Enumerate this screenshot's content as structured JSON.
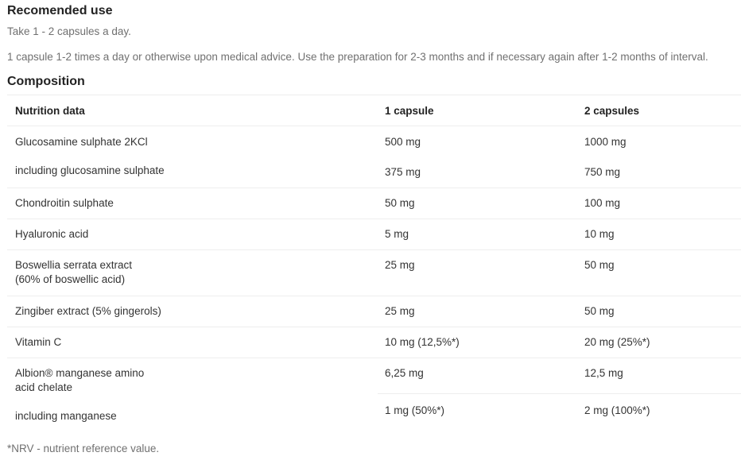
{
  "recommended_use": {
    "title": "Recomended use",
    "short": "Take 1 - 2 capsules a day.",
    "long": "1 capsule 1-2 times a day or otherwise upon medical advice. Use the preparation for 2-3 months and if necessary again after 1-2 months of interval."
  },
  "composition": {
    "title": "Composition",
    "headers": [
      "Nutrition data",
      "1 capsule",
      "2 capsules"
    ],
    "rows": [
      {
        "name": "Glucosamine sulphate 2KCl",
        "one": "500 mg",
        "two": "1000 mg"
      },
      {
        "name": "including glucosamine sulphate",
        "one": "375 mg",
        "two": "750 mg"
      },
      {
        "name": "Chondroitin sulphate",
        "one": "50 mg",
        "two": "100 mg"
      },
      {
        "name": "Hyaluronic acid",
        "one": "5 mg",
        "two": "10 mg"
      },
      {
        "name": "Boswellia serrata extract",
        "name2": "(60% of boswellic acid)",
        "one": "25 mg",
        "two": "50 mg"
      },
      {
        "name": "Zingiber extract (5% gingerols)",
        "one": "25 mg",
        "two": "50 mg"
      },
      {
        "name": "Vitamin C",
        "one": "10 mg (12,5%*)",
        "two": "20 mg (25%*)"
      },
      {
        "name": "Albion® manganese amino",
        "name2": "acid chelate",
        "one": "6,25 mg",
        "two": "12,5 mg"
      },
      {
        "name": "including manganese",
        "one": "1 mg (50%*)",
        "two": "2 mg (100%*)"
      }
    ],
    "footnote": "*NRV - nutrient reference value."
  }
}
